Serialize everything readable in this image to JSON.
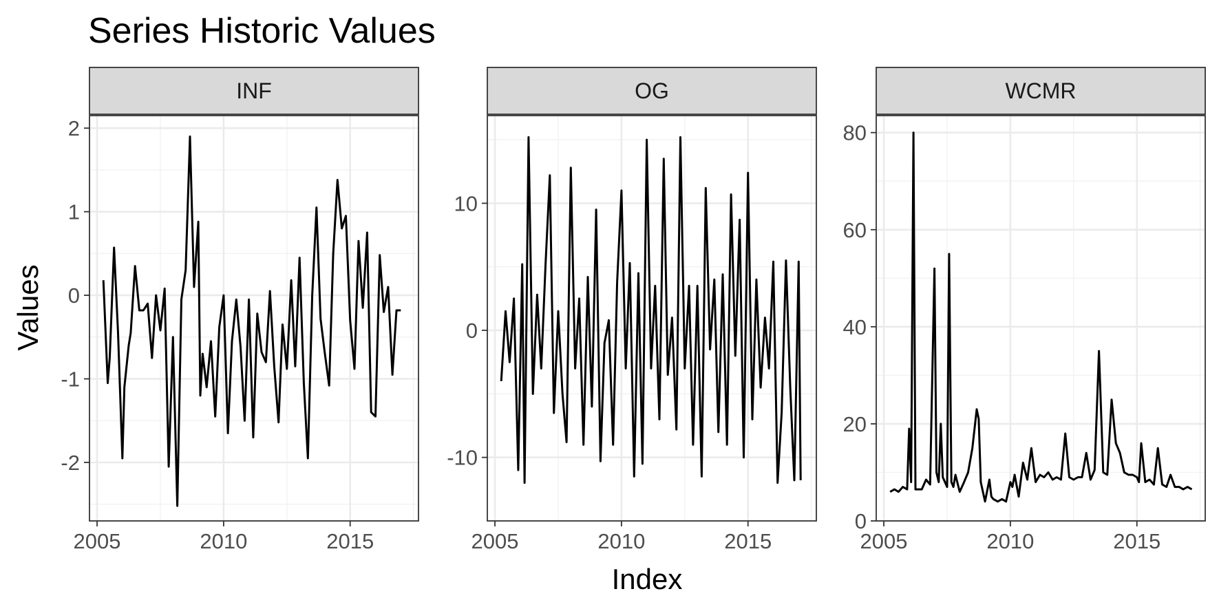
{
  "chart_data": {
    "type": "line",
    "layout": "facets",
    "title": "Series Historic Values",
    "xlabel": "Index",
    "ylabel": "Values",
    "x_ticks": [
      2005,
      2010,
      2015
    ],
    "x_tick_labels": [
      "2005",
      "2010",
      "2015"
    ],
    "xlim": [
      2004.7,
      2017.7
    ],
    "grid": true,
    "theme": "bw",
    "line_color": "#000000",
    "strip_fill": "#d9d9d9",
    "panels": [
      {
        "name": "INF",
        "ylim": [
          -2.7,
          2.15
        ],
        "y_ticks": [
          -2,
          -1,
          0,
          1,
          2
        ],
        "y_tick_labels": [
          "-2",
          "-1",
          "0",
          "1",
          "2"
        ],
        "x": [
          2005.25,
          2005.42,
          2005.5,
          2005.67,
          2005.83,
          2006.0,
          2006.08,
          2006.25,
          2006.33,
          2006.5,
          2006.67,
          2006.83,
          2007.0,
          2007.17,
          2007.33,
          2007.5,
          2007.67,
          2007.83,
          2008.0,
          2008.17,
          2008.33,
          2008.5,
          2008.67,
          2008.83,
          2009.0,
          2009.08,
          2009.17,
          2009.33,
          2009.5,
          2009.67,
          2009.83,
          2010.0,
          2010.17,
          2010.33,
          2010.5,
          2010.67,
          2010.83,
          2011.0,
          2011.17,
          2011.33,
          2011.5,
          2011.67,
          2011.83,
          2012.0,
          2012.17,
          2012.33,
          2012.5,
          2012.67,
          2012.83,
          2013.0,
          2013.17,
          2013.33,
          2013.5,
          2013.67,
          2013.83,
          2014.0,
          2014.17,
          2014.33,
          2014.5,
          2014.67,
          2014.83,
          2015.0,
          2015.17,
          2015.33,
          2015.5,
          2015.67,
          2015.83,
          2016.0,
          2016.17,
          2016.33,
          2016.5,
          2016.67,
          2016.83,
          2017.0
        ],
        "values": [
          0.18,
          -1.05,
          -0.75,
          0.57,
          -0.45,
          -1.95,
          -1.1,
          -0.6,
          -0.45,
          0.35,
          -0.18,
          -0.18,
          -0.1,
          -0.75,
          0.0,
          -0.42,
          0.08,
          -2.05,
          -0.5,
          -2.52,
          -0.05,
          0.3,
          1.9,
          0.1,
          0.88,
          -1.2,
          -0.7,
          -1.1,
          -0.55,
          -1.45,
          -0.38,
          0.0,
          -1.65,
          -0.55,
          -0.05,
          -0.62,
          -1.5,
          -0.05,
          -1.7,
          -0.22,
          -0.68,
          -0.8,
          0.05,
          -0.85,
          -1.52,
          -0.35,
          -0.88,
          0.18,
          -0.85,
          0.45,
          -1.05,
          -1.95,
          0.0,
          1.05,
          -0.28,
          -0.7,
          -1.08,
          0.5,
          1.38,
          0.8,
          0.95,
          -0.3,
          -0.88,
          0.65,
          -0.15,
          0.75,
          -1.4,
          -1.45,
          0.48,
          -0.2,
          0.1,
          -0.95,
          -0.18,
          -0.18
        ]
      },
      {
        "name": "OG",
        "ylim": [
          -15.0,
          16.9
        ],
        "y_ticks": [
          -10,
          0,
          10
        ],
        "y_tick_labels": [
          "-10",
          "0",
          "10"
        ],
        "x": [
          2005.25,
          2005.42,
          2005.58,
          2005.75,
          2005.92,
          2006.08,
          2006.17,
          2006.33,
          2006.5,
          2006.67,
          2006.83,
          2007.0,
          2007.17,
          2007.33,
          2007.5,
          2007.67,
          2007.83,
          2008.0,
          2008.17,
          2008.33,
          2008.5,
          2008.67,
          2008.83,
          2009.0,
          2009.17,
          2009.33,
          2009.5,
          2009.67,
          2009.83,
          2010.0,
          2010.17,
          2010.33,
          2010.5,
          2010.67,
          2010.83,
          2011.0,
          2011.17,
          2011.33,
          2011.5,
          2011.67,
          2011.83,
          2012.0,
          2012.17,
          2012.33,
          2012.5,
          2012.67,
          2012.83,
          2013.0,
          2013.17,
          2013.33,
          2013.5,
          2013.67,
          2013.83,
          2014.0,
          2014.17,
          2014.33,
          2014.5,
          2014.67,
          2014.83,
          2015.0,
          2015.17,
          2015.33,
          2015.5,
          2015.67,
          2015.83,
          2016.0,
          2016.17,
          2016.33,
          2016.5,
          2016.67,
          2016.83,
          2017.0,
          2017.08
        ],
        "values": [
          -4.0,
          1.5,
          -2.5,
          2.5,
          -11.0,
          5.2,
          -12.0,
          15.2,
          -5.0,
          2.8,
          -3.0,
          5.2,
          12.2,
          -6.5,
          1.5,
          -5.0,
          -8.8,
          12.8,
          -3.0,
          2.5,
          -9.0,
          4.2,
          -6.0,
          9.5,
          -10.3,
          -1.0,
          0.8,
          -9.0,
          3.8,
          11.0,
          -3.0,
          5.3,
          -11.5,
          4.5,
          -10.5,
          15.0,
          -3.0,
          3.5,
          -7.0,
          13.5,
          -3.5,
          1.0,
          -7.8,
          15.2,
          -3.0,
          3.5,
          -9.0,
          3.5,
          -11.5,
          11.2,
          -1.5,
          4.0,
          -8.0,
          4.4,
          -9.0,
          10.7,
          -2.0,
          8.7,
          -10.0,
          12.4,
          -7.0,
          4.0,
          -4.5,
          1.0,
          -3.0,
          5.4,
          -12.0,
          -6.5,
          5.5,
          -4.5,
          -11.8,
          5.4,
          -11.8
        ]
      },
      {
        "name": "WCMR",
        "ylim": [
          0,
          83.5
        ],
        "y_ticks": [
          0,
          20,
          40,
          60,
          80
        ],
        "y_tick_labels": [
          "0",
          "20",
          "40",
          "60",
          "80"
        ],
        "x": [
          2005.25,
          2005.42,
          2005.58,
          2005.75,
          2005.92,
          2006.0,
          2006.08,
          2006.17,
          2006.25,
          2006.33,
          2006.5,
          2006.67,
          2006.83,
          2007.0,
          2007.08,
          2007.17,
          2007.25,
          2007.33,
          2007.5,
          2007.58,
          2007.67,
          2007.75,
          2007.83,
          2008.0,
          2008.17,
          2008.33,
          2008.5,
          2008.67,
          2008.75,
          2008.83,
          2009.0,
          2009.17,
          2009.25,
          2009.33,
          2009.5,
          2009.67,
          2009.83,
          2010.0,
          2010.08,
          2010.17,
          2010.33,
          2010.5,
          2010.67,
          2010.83,
          2011.0,
          2011.17,
          2011.33,
          2011.5,
          2011.67,
          2011.83,
          2012.0,
          2012.17,
          2012.33,
          2012.5,
          2012.67,
          2012.83,
          2013.0,
          2013.17,
          2013.33,
          2013.5,
          2013.67,
          2013.83,
          2014.0,
          2014.17,
          2014.33,
          2014.5,
          2014.67,
          2014.83,
          2015.0,
          2015.08,
          2015.17,
          2015.33,
          2015.5,
          2015.67,
          2015.83,
          2016.0,
          2016.17,
          2016.33,
          2016.5,
          2016.67,
          2016.83,
          2017.0,
          2017.17
        ],
        "values": [
          6.0,
          6.5,
          6.0,
          7.0,
          6.5,
          19.0,
          8.0,
          80.0,
          6.5,
          6.5,
          6.5,
          8.5,
          7.5,
          52.0,
          10.0,
          8.0,
          20.0,
          9.0,
          7.0,
          55.0,
          8.0,
          7.0,
          9.5,
          6.0,
          8.0,
          10.0,
          15.0,
          23.0,
          21.0,
          8.0,
          4.0,
          8.5,
          5.0,
          4.5,
          4.0,
          4.5,
          4.0,
          8.0,
          7.0,
          9.5,
          5.0,
          12.0,
          8.5,
          15.0,
          8.0,
          9.5,
          9.0,
          10.0,
          8.5,
          9.0,
          8.5,
          18.0,
          9.0,
          8.5,
          9.0,
          9.0,
          14.0,
          8.5,
          10.5,
          35.0,
          10.0,
          9.5,
          25.0,
          16.0,
          14.0,
          10.0,
          9.5,
          9.5,
          9.0,
          8.0,
          16.0,
          8.0,
          8.5,
          7.5,
          15.0,
          7.5,
          7.0,
          9.5,
          7.0,
          7.0,
          6.5,
          7.0,
          6.5
        ]
      }
    ]
  }
}
